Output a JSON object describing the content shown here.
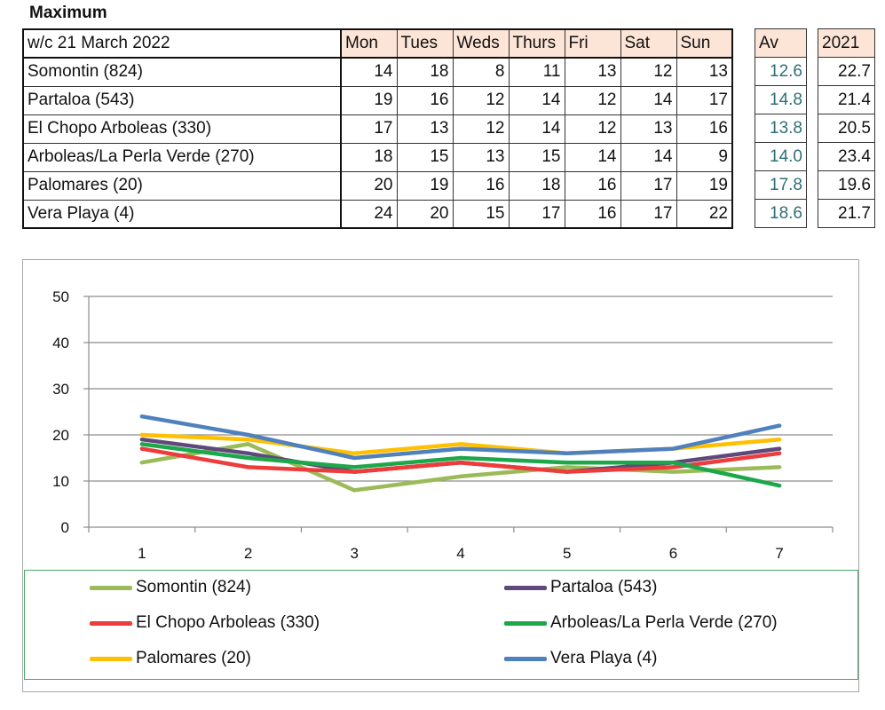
{
  "heading": "Maximum",
  "table": {
    "week_label": "w/c 21 March 2022",
    "days": [
      "Mon",
      "Tues",
      "Weds",
      "Thurs",
      "Fri",
      "Sat",
      "Sun"
    ],
    "av_label": "Av",
    "year_label": "2021",
    "rows": [
      {
        "name": "Somontin (824)",
        "values": [
          "14",
          "18",
          "8",
          "11",
          "13",
          "12",
          "13"
        ],
        "av": "12.6",
        "y2021": "22.7"
      },
      {
        "name": "Partaloa (543)",
        "values": [
          "19",
          "16",
          "12",
          "14",
          "12",
          "14",
          "17"
        ],
        "av": "14.8",
        "y2021": "21.4"
      },
      {
        "name": "El Chopo  Arboleas (330)",
        "values": [
          "17",
          "13",
          "12",
          "14",
          "12",
          "13",
          "16"
        ],
        "av": "13.8",
        "y2021": "20.5"
      },
      {
        "name": "Arboleas/La Perla Verde (270)",
        "values": [
          "18",
          "15",
          "13",
          "15",
          "14",
          "14",
          "9"
        ],
        "av": "14.0",
        "y2021": "23.4"
      },
      {
        "name": "Palomares (20)",
        "values": [
          "20",
          "19",
          "16",
          "18",
          "16",
          "17",
          "19"
        ],
        "av": "17.8",
        "y2021": "19.6"
      },
      {
        "name": "Vera Playa (4)",
        "values": [
          "24",
          "20",
          "15",
          "17",
          "16",
          "17",
          "22"
        ],
        "av": "18.6",
        "y2021": "21.7"
      }
    ]
  },
  "chart_data": {
    "type": "line",
    "x": [
      1,
      2,
      3,
      4,
      5,
      6,
      7
    ],
    "ylim": [
      0,
      50
    ],
    "yticks": [
      0,
      10,
      20,
      30,
      40,
      50
    ],
    "grid": true,
    "legend_position": "bottom",
    "series": [
      {
        "name": "Somontin (824)",
        "color": "#9bbb59",
        "values": [
          14,
          18,
          8,
          11,
          13,
          12,
          13
        ]
      },
      {
        "name": "Partaloa (543)",
        "color": "#5f497a",
        "values": [
          19,
          16,
          12,
          14,
          12,
          14,
          17
        ]
      },
      {
        "name": "El Chopo  Arboleas (330)",
        "color": "#ee3b3b",
        "values": [
          17,
          13,
          12,
          14,
          12,
          13,
          16
        ]
      },
      {
        "name": "Arboleas/La Perla Verde (270)",
        "color": "#1ca84a",
        "values": [
          18,
          15,
          13,
          15,
          14,
          14,
          9
        ]
      },
      {
        "name": "Palomares (20)",
        "color": "#ffc000",
        "values": [
          20,
          19,
          16,
          18,
          16,
          17,
          19
        ]
      },
      {
        "name": "Vera Playa (4)",
        "color": "#4f81bd",
        "values": [
          24,
          20,
          15,
          17,
          16,
          17,
          22
        ]
      }
    ]
  }
}
